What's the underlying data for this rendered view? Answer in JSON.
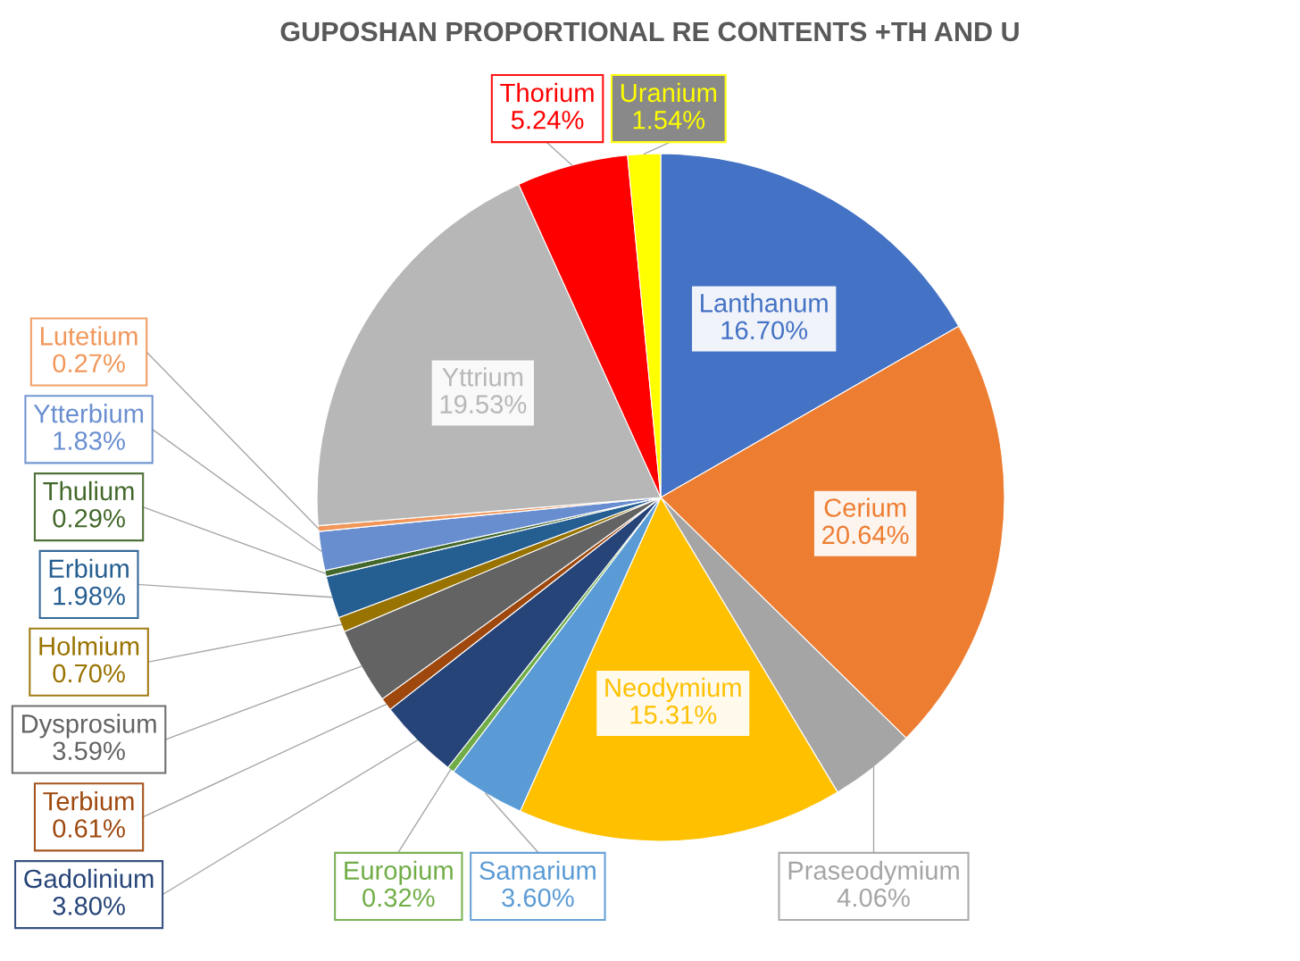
{
  "chart_data": {
    "type": "pie",
    "title": "GUPOSHAN PROPORTIONAL RE CONTENTS +TH AND U",
    "categories": [
      "Lanthanum",
      "Cerium",
      "Praseodymium",
      "Neodymium",
      "Samarium",
      "Europium",
      "Gadolinium",
      "Terbium",
      "Dysprosium",
      "Holmium",
      "Erbium",
      "Thulium",
      "Ytterbium",
      "Lutetium",
      "Yttrium",
      "Thorium",
      "Uranium"
    ],
    "values": [
      16.7,
      20.64,
      4.06,
      15.31,
      3.6,
      0.32,
      3.8,
      0.61,
      3.59,
      0.7,
      1.98,
      0.29,
      1.83,
      0.27,
      19.53,
      5.24,
      1.54
    ],
    "colors": [
      "#4472c4",
      "#ed7d31",
      "#a5a5a5",
      "#ffc000",
      "#5b9bd5",
      "#70ad47",
      "#264478",
      "#9e480e",
      "#636363",
      "#997300",
      "#255e91",
      "#43682b",
      "#698ed0",
      "#f1975a",
      "#b7b7b7",
      "#ff0000",
      "#ffff00"
    ],
    "value_labels": [
      "16.70%",
      "20.64%",
      "4.06%",
      "15.31%",
      "3.60%",
      "0.32%",
      "3.80%",
      "0.61%",
      "3.59%",
      "0.70%",
      "1.98%",
      "0.29%",
      "1.83%",
      "0.27%",
      "19.53%",
      "5.24%",
      "1.54%"
    ]
  }
}
